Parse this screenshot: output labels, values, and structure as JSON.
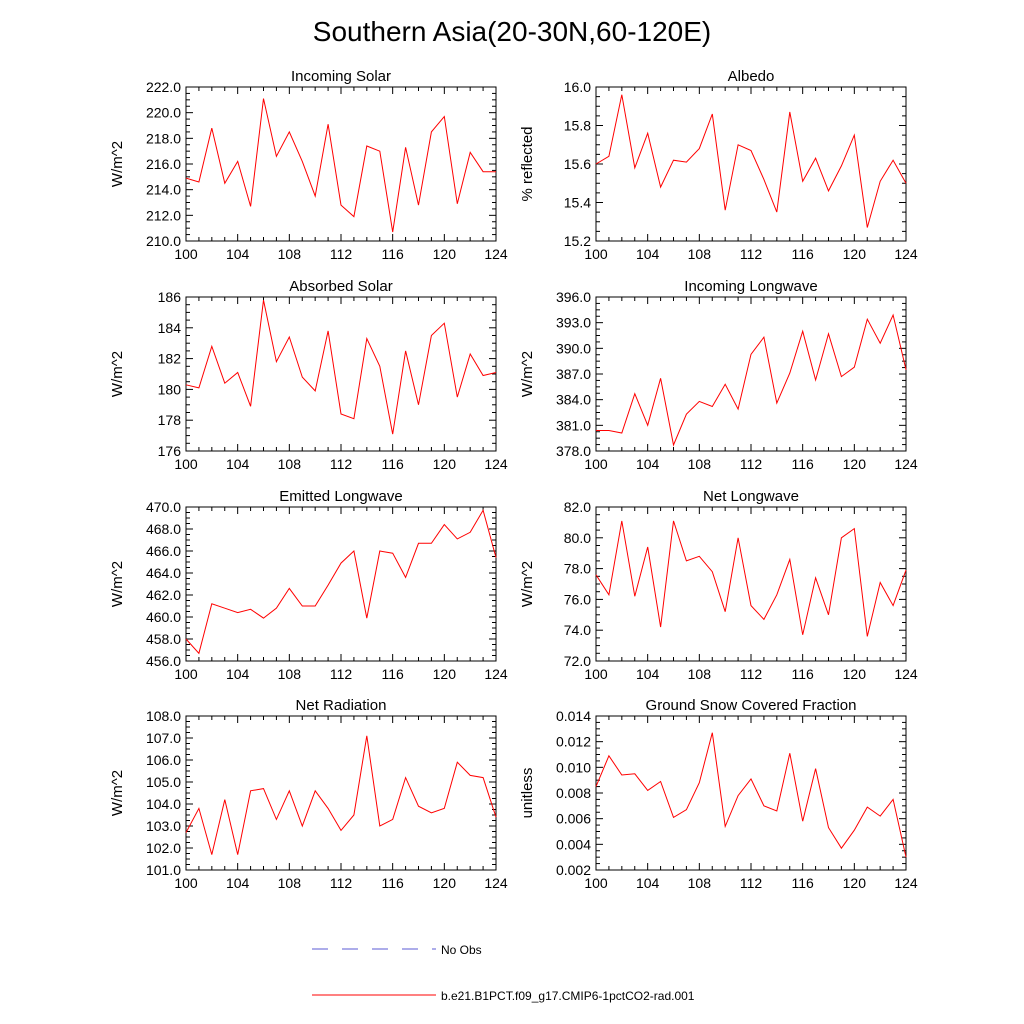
{
  "title": "Southern Asia(20-30N,60-120E)",
  "colors": {
    "series": "#ff0000",
    "obs": "#5b5bd6",
    "axis": "#000000"
  },
  "legend": {
    "obs_label": "No Obs",
    "series_label": "b.e21.B1PCT.f09_g17.CMIP6-1pctCO2-rad.001"
  },
  "chart_data": [
    {
      "type": "line",
      "title": "Incoming Solar",
      "ylabel": "W/m^2",
      "xlim": [
        100,
        124
      ],
      "xticks": [
        "100",
        "104",
        "108",
        "112",
        "116",
        "120",
        "124"
      ],
      "ylim": [
        210,
        222
      ],
      "yticks": [
        "210.0",
        "212.0",
        "214.0",
        "216.0",
        "218.0",
        "220.0",
        "222.0"
      ],
      "x": [
        100,
        101,
        102,
        103,
        104,
        105,
        106,
        107,
        108,
        109,
        110,
        111,
        112,
        113,
        114,
        115,
        116,
        117,
        118,
        119,
        120,
        121,
        122,
        123,
        124
      ],
      "values": [
        214.9,
        214.6,
        218.8,
        214.5,
        216.2,
        212.7,
        221.1,
        216.6,
        218.5,
        216.2,
        213.5,
        219.1,
        212.8,
        211.9,
        217.4,
        217.0,
        210.7,
        217.3,
        212.8,
        218.5,
        219.7,
        212.9,
        216.9,
        215.4,
        215.4
      ]
    },
    {
      "type": "line",
      "title": "Albedo",
      "ylabel": "% reflected",
      "xlim": [
        100,
        124
      ],
      "xticks": [
        "100",
        "104",
        "108",
        "112",
        "116",
        "120",
        "124"
      ],
      "ylim": [
        15.2,
        16.0
      ],
      "yticks": [
        "15.2",
        "15.4",
        "15.6",
        "15.8",
        "16.0"
      ],
      "x": [
        100,
        101,
        102,
        103,
        104,
        105,
        106,
        107,
        108,
        109,
        110,
        111,
        112,
        113,
        114,
        115,
        116,
        117,
        118,
        119,
        120,
        121,
        122,
        123,
        124
      ],
      "values": [
        15.6,
        15.64,
        15.96,
        15.58,
        15.76,
        15.48,
        15.62,
        15.61,
        15.68,
        15.86,
        15.36,
        15.7,
        15.67,
        15.52,
        15.35,
        15.87,
        15.51,
        15.63,
        15.46,
        15.59,
        15.75,
        15.27,
        15.51,
        15.62,
        15.5
      ]
    },
    {
      "type": "line",
      "title": "Absorbed Solar",
      "ylabel": "W/m^2",
      "xlim": [
        100,
        124
      ],
      "xticks": [
        "100",
        "104",
        "108",
        "112",
        "116",
        "120",
        "124"
      ],
      "ylim": [
        176,
        186
      ],
      "yticks": [
        "176",
        "178",
        "180",
        "182",
        "184",
        "186"
      ],
      "x": [
        100,
        101,
        102,
        103,
        104,
        105,
        106,
        107,
        108,
        109,
        110,
        111,
        112,
        113,
        114,
        115,
        116,
        117,
        118,
        119,
        120,
        121,
        122,
        123,
        124
      ],
      "values": [
        180.3,
        180.1,
        182.8,
        180.4,
        181.1,
        178.9,
        185.8,
        181.8,
        183.4,
        180.8,
        179.9,
        183.8,
        178.4,
        178.1,
        183.3,
        181.5,
        177.1,
        182.5,
        179.0,
        183.5,
        184.3,
        179.5,
        182.3,
        180.9,
        181.1
      ]
    },
    {
      "type": "line",
      "title": "Incoming Longwave",
      "ylabel": "W/m^2",
      "xlim": [
        100,
        124
      ],
      "xticks": [
        "100",
        "104",
        "108",
        "112",
        "116",
        "120",
        "124"
      ],
      "ylim": [
        378,
        396
      ],
      "yticks": [
        "378.0",
        "381.0",
        "384.0",
        "387.0",
        "390.0",
        "393.0",
        "396.0"
      ],
      "x": [
        100,
        101,
        102,
        103,
        104,
        105,
        106,
        107,
        108,
        109,
        110,
        111,
        112,
        113,
        114,
        115,
        116,
        117,
        118,
        119,
        120,
        121,
        122,
        123,
        124
      ],
      "values": [
        380.4,
        380.4,
        380.1,
        384.7,
        381.0,
        386.5,
        378.7,
        382.3,
        383.8,
        383.2,
        385.8,
        382.9,
        389.3,
        391.3,
        383.6,
        387.1,
        392.0,
        386.3,
        391.7,
        386.7,
        387.8,
        393.4,
        390.6,
        393.9,
        387.5
      ]
    },
    {
      "type": "line",
      "title": "Emitted Longwave",
      "ylabel": "W/m^2",
      "xlim": [
        100,
        124
      ],
      "xticks": [
        "100",
        "104",
        "108",
        "112",
        "116",
        "120",
        "124"
      ],
      "ylim": [
        456,
        470
      ],
      "yticks": [
        "456.0",
        "458.0",
        "460.0",
        "462.0",
        "464.0",
        "466.0",
        "468.0",
        "470.0"
      ],
      "x": [
        100,
        101,
        102,
        103,
        104,
        105,
        106,
        107,
        108,
        109,
        110,
        111,
        112,
        113,
        114,
        115,
        116,
        117,
        118,
        119,
        120,
        121,
        122,
        123,
        124
      ],
      "values": [
        458.0,
        456.7,
        461.2,
        460.8,
        460.4,
        460.7,
        459.9,
        460.8,
        462.6,
        461.0,
        461.0,
        462.9,
        464.9,
        466.0,
        459.9,
        466.0,
        465.8,
        463.6,
        466.7,
        466.7,
        468.4,
        467.1,
        467.7,
        469.7,
        465.4
      ]
    },
    {
      "type": "line",
      "title": "Net Longwave",
      "ylabel": "W/m^2",
      "xlim": [
        100,
        124
      ],
      "xticks": [
        "100",
        "104",
        "108",
        "112",
        "116",
        "120",
        "124"
      ],
      "ylim": [
        72,
        82
      ],
      "yticks": [
        "72.0",
        "74.0",
        "76.0",
        "78.0",
        "80.0",
        "82.0"
      ],
      "x": [
        100,
        101,
        102,
        103,
        104,
        105,
        106,
        107,
        108,
        109,
        110,
        111,
        112,
        113,
        114,
        115,
        116,
        117,
        118,
        119,
        120,
        121,
        122,
        123,
        124
      ],
      "values": [
        77.6,
        76.3,
        81.1,
        76.2,
        79.4,
        74.2,
        81.1,
        78.5,
        78.8,
        77.8,
        75.2,
        80.0,
        75.6,
        74.7,
        76.3,
        78.6,
        73.7,
        77.4,
        75.0,
        80.0,
        80.6,
        73.6,
        77.1,
        75.6,
        77.9
      ]
    },
    {
      "type": "line",
      "title": "Net Radiation",
      "ylabel": "W/m^2",
      "xlim": [
        100,
        124
      ],
      "xticks": [
        "100",
        "104",
        "108",
        "112",
        "116",
        "120",
        "124"
      ],
      "ylim": [
        101,
        108
      ],
      "yticks": [
        "101.0",
        "102.0",
        "103.0",
        "104.0",
        "105.0",
        "106.0",
        "107.0",
        "108.0"
      ],
      "x": [
        100,
        101,
        102,
        103,
        104,
        105,
        106,
        107,
        108,
        109,
        110,
        111,
        112,
        113,
        114,
        115,
        116,
        117,
        118,
        119,
        120,
        121,
        122,
        123,
        124
      ],
      "values": [
        102.7,
        103.8,
        101.7,
        104.2,
        101.7,
        104.6,
        104.7,
        103.3,
        104.6,
        103.0,
        104.6,
        103.8,
        102.8,
        103.5,
        107.1,
        103.0,
        103.3,
        105.2,
        103.9,
        103.6,
        103.8,
        105.9,
        105.3,
        105.2,
        103.4
      ]
    },
    {
      "type": "line",
      "title": "Ground Snow Covered Fraction",
      "ylabel": "unitless",
      "xlim": [
        100,
        124
      ],
      "xticks": [
        "100",
        "104",
        "108",
        "112",
        "116",
        "120",
        "124"
      ],
      "ylim": [
        0.002,
        0.014
      ],
      "yticks": [
        "0.002",
        "0.004",
        "0.006",
        "0.008",
        "0.010",
        "0.012",
        "0.014"
      ],
      "x": [
        100,
        101,
        102,
        103,
        104,
        105,
        106,
        107,
        108,
        109,
        110,
        111,
        112,
        113,
        114,
        115,
        116,
        117,
        118,
        119,
        120,
        121,
        122,
        123,
        124
      ],
      "values": [
        0.0085,
        0.0109,
        0.0094,
        0.0095,
        0.0082,
        0.0089,
        0.0061,
        0.0067,
        0.0088,
        0.0127,
        0.0054,
        0.0078,
        0.0091,
        0.007,
        0.0066,
        0.0111,
        0.0058,
        0.0099,
        0.0053,
        0.0037,
        0.0051,
        0.0069,
        0.0062,
        0.0075,
        0.003
      ]
    }
  ]
}
